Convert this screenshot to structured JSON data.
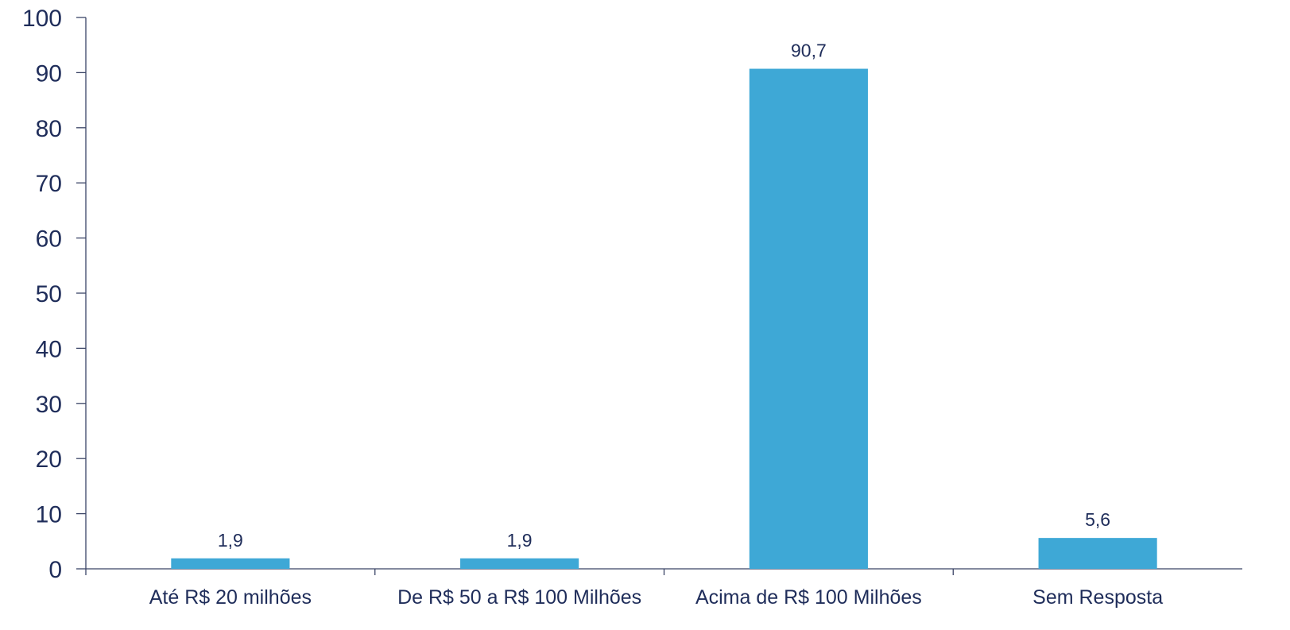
{
  "chart_data": {
    "type": "bar",
    "categories": [
      "Até R$ 20 milhões",
      "De R$ 50 a R$ 100 Milhões",
      "Acima de R$ 100 Milhões",
      "Sem Resposta"
    ],
    "values": [
      1.9,
      1.9,
      90.7,
      5.6
    ],
    "value_labels": [
      "1,9",
      "1,9",
      "90,7",
      "5,6"
    ],
    "y_ticks": [
      "0",
      "10",
      "20",
      "30",
      "40",
      "50",
      "60",
      "70",
      "80",
      "90",
      "100"
    ],
    "ylim": [
      0,
      100
    ],
    "title": "",
    "xlabel": "",
    "ylabel": "",
    "grid": false,
    "legend": "none",
    "bar_color": "#3ea8d6",
    "axis_color": "#3a4466",
    "text_color": "#1f2d5a"
  }
}
